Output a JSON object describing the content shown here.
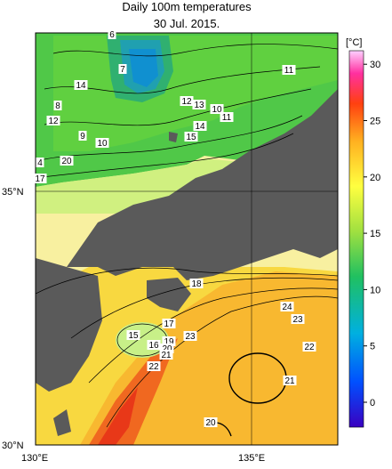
{
  "title": "Daily 100m temperatures",
  "date": "30 Jul. 2015.",
  "colorbar": {
    "unit": "[°C]",
    "ticks": [
      "0",
      "5",
      "10",
      "15",
      "20",
      "25",
      "30"
    ]
  },
  "axes": {
    "lon_labels": [
      "130°E",
      "135°E"
    ],
    "lat_labels": [
      "35°N",
      "30°N"
    ]
  },
  "contour_labels": [
    "6",
    "7",
    "14",
    "8",
    "12",
    "9",
    "10",
    "11",
    "4",
    "17",
    "12",
    "13",
    "10",
    "11",
    "14",
    "15",
    "18",
    "15",
    "16",
    "17",
    "19",
    "20",
    "21",
    "22",
    "23",
    "24",
    "23",
    "22",
    "21",
    "20",
    "20"
  ],
  "colors": {
    "land": "#5a5a5a",
    "lake": "#bdbdbd",
    "warm": "#f5a020",
    "cool": "#30c040"
  }
}
